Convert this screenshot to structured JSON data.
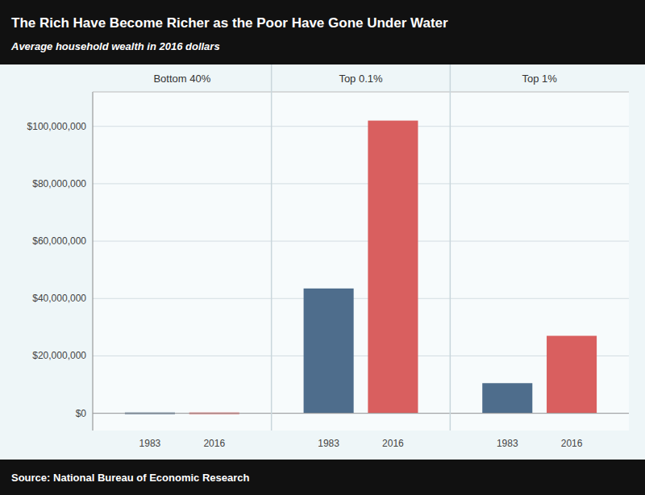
{
  "chart_data": {
    "type": "bar",
    "title": "The Rich Have Become Richer as the Poor Have Gone Under Water",
    "subtitle": "Average household wealth in 2016 dollars",
    "annotations": [
      "Source: National Bureau of Economic Research"
    ],
    "categories": [
      "Bottom 40%",
      "Top 0.1%",
      "Top 1%"
    ],
    "series": [
      {
        "name": "1983",
        "color": "#4e6d8c",
        "values": [
          -3000,
          43500000,
          10500000
        ]
      },
      {
        "name": "2016",
        "color": "#d95f5f",
        "values": [
          -8000,
          102000000,
          27000000
        ]
      }
    ],
    "ylim": [
      -6000000,
      112000000
    ],
    "yticks": [
      {
        "value": 0,
        "label": "$0"
      },
      {
        "value": 20000000,
        "label": "$20,000,000"
      },
      {
        "value": 40000000,
        "label": "$40,000,000"
      },
      {
        "value": 60000000,
        "label": "$60,000,000"
      },
      {
        "value": 80000000,
        "label": "$80,000,000"
      },
      {
        "value": 100000000,
        "label": "$100,000,000"
      }
    ],
    "grid": true
  }
}
